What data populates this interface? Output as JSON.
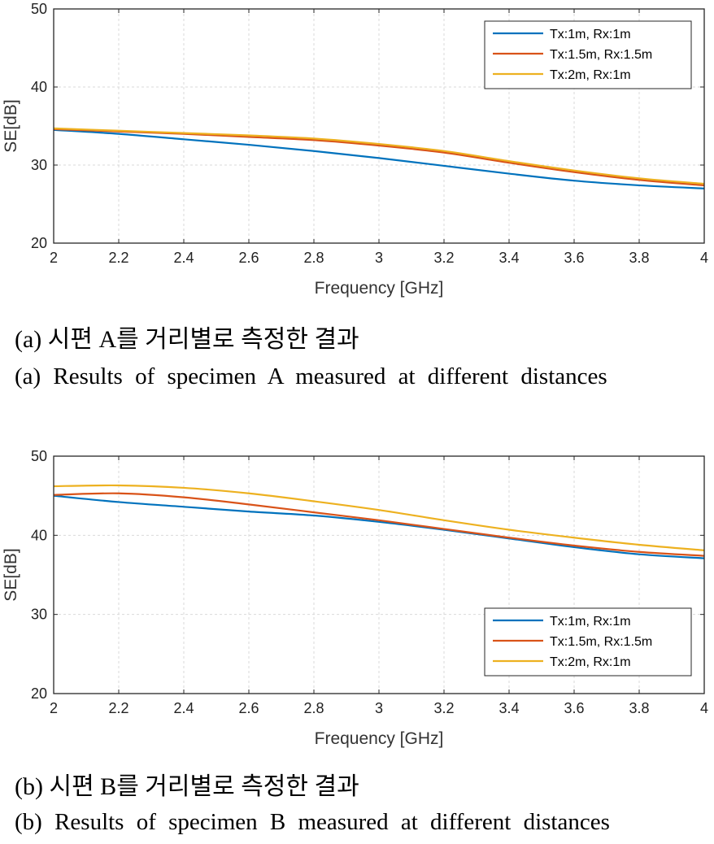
{
  "chart_data": [
    {
      "type": "line",
      "xlabel": "Frequency [GHz]",
      "ylabel": "SE[dB]",
      "xlim": [
        2,
        4
      ],
      "ylim": [
        20,
        50
      ],
      "xticks": [
        2,
        2.2,
        2.4,
        2.6,
        2.8,
        3,
        3.2,
        3.4,
        3.6,
        3.8,
        4
      ],
      "yticks": [
        20,
        30,
        40,
        50
      ],
      "grid": true,
      "legend_position": "top-right",
      "x": [
        2,
        2.2,
        2.4,
        2.6,
        2.8,
        3,
        3.2,
        3.4,
        3.6,
        3.8,
        4
      ],
      "series": [
        {
          "name": "Tx:1m, Rx:1m",
          "color": "#0072BD",
          "values": [
            34.5,
            34.0,
            33.3,
            32.6,
            31.8,
            30.9,
            29.9,
            28.9,
            28.0,
            27.4,
            27.0
          ]
        },
        {
          "name": "Tx:1.5m, Rx:1.5m",
          "color": "#D95319",
          "values": [
            34.6,
            34.3,
            34.0,
            33.6,
            33.2,
            32.5,
            31.6,
            30.3,
            29.1,
            28.1,
            27.4
          ]
        },
        {
          "name": "Tx:2m, Rx:1m",
          "color": "#EDB120",
          "values": [
            34.7,
            34.4,
            34.1,
            33.8,
            33.4,
            32.7,
            31.8,
            30.5,
            29.3,
            28.3,
            27.6
          ]
        }
      ]
    },
    {
      "type": "line",
      "xlabel": "Frequency [GHz]",
      "ylabel": "SE[dB]",
      "xlim": [
        2,
        4
      ],
      "ylim": [
        20,
        50
      ],
      "xticks": [
        2,
        2.2,
        2.4,
        2.6,
        2.8,
        3,
        3.2,
        3.4,
        3.6,
        3.8,
        4
      ],
      "yticks": [
        20,
        30,
        40,
        50
      ],
      "grid": true,
      "legend_position": "bottom-right",
      "x": [
        2,
        2.2,
        2.4,
        2.6,
        2.8,
        3,
        3.2,
        3.4,
        3.6,
        3.8,
        4
      ],
      "series": [
        {
          "name": "Tx:1m, Rx:1m",
          "color": "#0072BD",
          "values": [
            45.0,
            44.2,
            43.6,
            43.0,
            42.5,
            41.7,
            40.7,
            39.6,
            38.5,
            37.6,
            37.1
          ]
        },
        {
          "name": "Tx:1.5m, Rx:1.5m",
          "color": "#D95319",
          "values": [
            45.1,
            45.3,
            44.8,
            43.9,
            42.9,
            41.9,
            40.8,
            39.7,
            38.7,
            37.9,
            37.4
          ]
        },
        {
          "name": "Tx:2m, Rx:1m",
          "color": "#EDB120",
          "values": [
            46.2,
            46.3,
            46.0,
            45.3,
            44.3,
            43.2,
            41.9,
            40.7,
            39.7,
            38.8,
            38.1
          ]
        }
      ]
    }
  ],
  "captions": {
    "a_ko": "(a) 시편 A를 거리별로 측정한 결과",
    "a_en": "(a) Results of specimen A measured at different distances",
    "b_ko": "(b) 시편 B를 거리별로 측정한 결과",
    "b_en": "(b) Results of specimen B measured at different distances"
  }
}
